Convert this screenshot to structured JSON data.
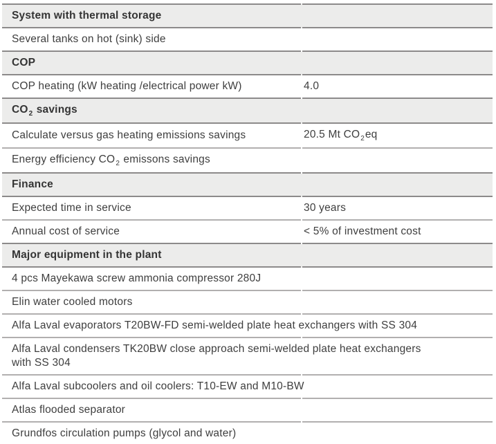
{
  "colors": {
    "header_bg": "#ececeb",
    "border_dark": "#8c8a8a",
    "border_light": "#b1afaf",
    "text": "#3e3e3e"
  },
  "table": {
    "rows": [
      {
        "type": "section",
        "label": "System with thermal storage"
      },
      {
        "type": "spec",
        "label": "Several tanks on hot (sink) side",
        "value": ""
      },
      {
        "type": "section",
        "label": "COP"
      },
      {
        "type": "spec",
        "label": "COP heating (kW heating /electrical power kW)",
        "value": "4.0"
      },
      {
        "type": "section",
        "label_parts": [
          [
            "CO"
          ],
          [
            "2",
            "sub"
          ],
          [
            " savings"
          ]
        ]
      },
      {
        "type": "spec",
        "label": "Calculate versus gas heating emissions savings",
        "value_parts": [
          [
            "20.5 Mt CO"
          ],
          [
            "2",
            "sub"
          ],
          [
            "eq"
          ]
        ]
      },
      {
        "type": "spec",
        "label_parts": [
          [
            "Energy efficiency CO"
          ],
          [
            "2",
            "sub"
          ],
          [
            " emissons savings"
          ]
        ],
        "value": ""
      },
      {
        "type": "section",
        "label": "Finance"
      },
      {
        "type": "spec",
        "label": "Expected time in service",
        "value": "30 years"
      },
      {
        "type": "spec",
        "label": "Annual cost of service",
        "value": "< 5% of investment cost"
      },
      {
        "type": "section",
        "label": "Major equipment in the plant"
      },
      {
        "type": "full",
        "lines": [
          "4 pcs Mayekawa screw ammonia compressor 280J"
        ]
      },
      {
        "type": "full",
        "lines": [
          "Elin water cooled motors"
        ]
      },
      {
        "type": "full",
        "lines": [
          "Alfa Laval evaporators T20BW-FD semi-welded plate heat exchangers with SS 304"
        ]
      },
      {
        "type": "full",
        "lines": [
          "Alfa Laval condensers TK20BW close approach semi-welded plate heat exchangers",
          "with SS 304"
        ]
      },
      {
        "type": "full",
        "lines": [
          "Alfa Laval subcoolers and oil coolers: T10-EW and M10-BW"
        ]
      },
      {
        "type": "full",
        "lines": [
          "Atlas flooded separator"
        ]
      },
      {
        "type": "full",
        "lines": [
          "Grundfos circulation pumps (glycol and water)"
        ]
      }
    ]
  }
}
